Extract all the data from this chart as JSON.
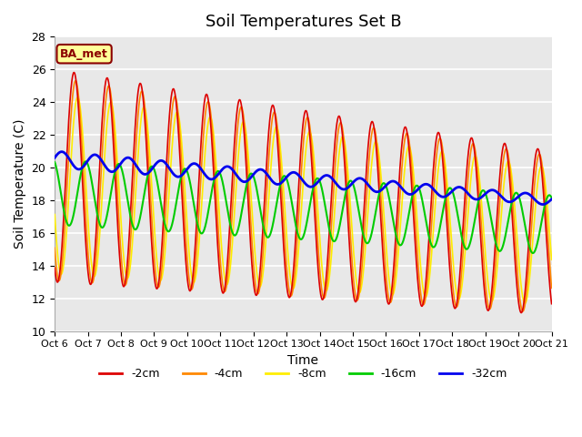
{
  "title": "Soil Temperatures Set B",
  "xlabel": "Time",
  "ylabel": "Soil Temperature (C)",
  "ylim": [
    10,
    28
  ],
  "xlim": [
    0,
    360
  ],
  "annotation": "BA_met",
  "legend_labels": [
    "-2cm",
    "-4cm",
    "-8cm",
    "-16cm",
    "-32cm"
  ],
  "legend_colors": [
    "#dd0000",
    "#ff8800",
    "#ffee00",
    "#00cc00",
    "#0000ee"
  ],
  "tick_labels": [
    "Oct 6",
    "Oct 7",
    "Oct 8",
    "Oct 9",
    "Oct 10",
    "Oct 11",
    "Oct 12",
    "Oct 13",
    "Oct 14",
    "Oct 15",
    "Oct 16",
    "Oct 17",
    "Oct 18",
    "Oct 19",
    "Oct 20",
    "Oct 21"
  ],
  "tick_positions": [
    0,
    24,
    48,
    72,
    96,
    120,
    144,
    168,
    192,
    216,
    240,
    264,
    288,
    312,
    336,
    360
  ],
  "background_color": "#e8e8e8",
  "title_fontsize": 13
}
